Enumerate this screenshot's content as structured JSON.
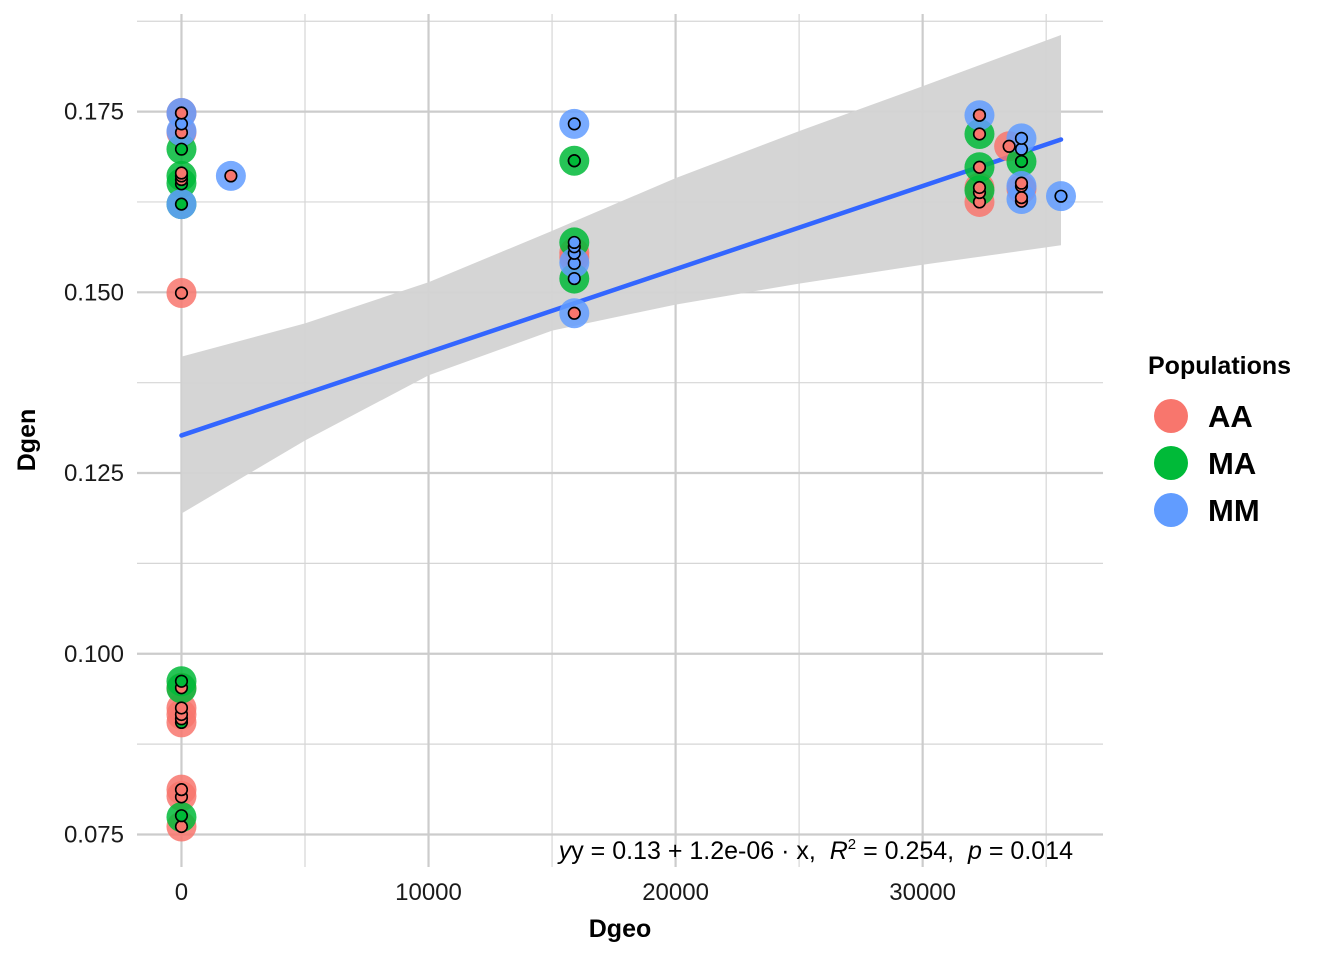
{
  "chart_data": {
    "type": "scatter",
    "title": "",
    "xlabel": "Dgeo",
    "ylabel": "Dgen",
    "xlim": [
      -1800,
      37300
    ],
    "ylim": [
      0.0705,
      0.1885
    ],
    "x_ticks": [
      0,
      10000,
      20000,
      30000
    ],
    "x_tick_labels": [
      "0",
      "10000",
      "20000",
      "30000"
    ],
    "y_ticks": [
      0.075,
      0.1,
      0.125,
      0.15,
      0.175
    ],
    "y_tick_labels": [
      "0.075",
      "0.100",
      "0.125",
      "0.150",
      "0.175"
    ],
    "grid": true,
    "legend": {
      "title": "Populations",
      "position": "right",
      "entries": [
        {
          "name": "AA",
          "color": "#F8766D"
        },
        {
          "name": "MA",
          "color": "#00BA38"
        },
        {
          "name": "MM",
          "color": "#619CFF"
        }
      ]
    },
    "series": [
      {
        "name": "AA",
        "color": "#F8766D",
        "x": [
          0,
          0,
          0,
          0,
          0,
          0,
          0,
          0,
          0,
          0,
          15900,
          15900,
          32300,
          32300,
          33500,
          34000
        ],
        "y": [
          0.0761,
          0.0803,
          0.0812,
          0.0905,
          0.0916,
          0.0925,
          0.0953,
          0.1499,
          0.1721,
          0.1748,
          0.1548,
          0.1555,
          0.1625,
          0.1645,
          0.1702,
          0.1643
        ]
      },
      {
        "name": "MA",
        "color": "#00BA38",
        "x": [
          0,
          0,
          0,
          0,
          0,
          0,
          0,
          15900,
          15900,
          15900,
          32300,
          32300,
          32300,
          34000
        ],
        "y": [
          0.0774,
          0.0952,
          0.0962,
          0.1622,
          0.1651,
          0.1661,
          0.1698,
          0.1519,
          0.1569,
          0.1682,
          0.1641,
          0.1673,
          0.1719,
          0.1681
        ]
      },
      {
        "name": "MM",
        "color": "#619CFF",
        "x": [
          0,
          0,
          0,
          2000,
          15900,
          15900,
          15900,
          32300,
          34000,
          34000,
          34000,
          35600
        ],
        "y": [
          0.1622,
          0.1723,
          0.1748,
          0.1661,
          0.1471,
          0.1541,
          0.1733,
          0.1745,
          0.1629,
          0.1647,
          0.1713,
          0.1633
        ]
      }
    ],
    "inner_points": {
      "x": [
        0,
        0,
        0,
        0,
        0,
        0,
        0,
        0,
        0,
        0,
        0,
        0,
        0,
        0,
        0,
        0,
        0,
        0,
        0,
        0,
        0,
        2000,
        15900,
        15900,
        15900,
        15900,
        15900,
        15900,
        15900,
        15900,
        15900,
        32300,
        32300,
        32300,
        32300,
        32300,
        32300,
        32300,
        33500,
        34000,
        34000,
        34000,
        34000,
        34000,
        34000,
        34000,
        35600
      ],
      "y": [
        0.0761,
        0.0776,
        0.0802,
        0.0812,
        0.0905,
        0.091,
        0.0916,
        0.0925,
        0.0953,
        0.0962,
        0.1499,
        0.1622,
        0.165,
        0.1656,
        0.1661,
        0.1665,
        0.1698,
        0.1721,
        0.1733,
        0.1748,
        0.1748,
        0.1661,
        0.1471,
        0.1519,
        0.154,
        0.1554,
        0.1563,
        0.1569,
        0.1682,
        0.1682,
        0.1733,
        0.1625,
        0.1638,
        0.1645,
        0.1673,
        0.1719,
        0.1745,
        0.1745,
        0.1702,
        0.1626,
        0.1631,
        0.1647,
        0.1651,
        0.1681,
        0.1698,
        0.1713,
        0.1633
      ],
      "fill": [
        "#F8766D",
        "#00BA38",
        "#F8766D",
        "#F8766D",
        "#00BA38",
        "#F8766D",
        "#F8766D",
        "#F8766D",
        "#F8766D",
        "#00BA38",
        "#F8766D",
        "#00BA38",
        "#00BA38",
        "#F8766D",
        "#F8766D",
        "#F8766D",
        "#00BA38",
        "#F8766D",
        "#619CFF",
        "#619CFF",
        "#F8766D",
        "#F8766D",
        "#F8766D",
        "#619CFF",
        "#619CFF",
        "#619CFF",
        "#619CFF",
        "#619CFF",
        "#00BA38",
        "#00BA38",
        "#619CFF",
        "#F8766D",
        "#F8766D",
        "#F8766D",
        "#F8766D",
        "#F8766D",
        "#F8766D",
        "#F8766D",
        "#F8766D",
        "#F8766D",
        "#F8766D",
        "#F8766D",
        "#F8766D",
        "#00BA38",
        "#619CFF",
        "#619CFF",
        "#619CFF"
      ]
    },
    "regression": {
      "intercept": 0.1302,
      "slope": 1.15e-06,
      "x_range": [
        0,
        35600
      ],
      "ci": {
        "x": [
          0,
          5000,
          10000,
          15000,
          20000,
          25000,
          30000,
          35600
        ],
        "lower": [
          0.1194,
          0.1295,
          0.1385,
          0.1447,
          0.1483,
          0.1512,
          0.1538,
          0.1565
        ],
        "upper": [
          0.1411,
          0.1457,
          0.1514,
          0.1585,
          0.1658,
          0.1723,
          0.1785,
          0.1856
        ]
      },
      "line_color": "#3366FF",
      "band_color": "#d3d3d3"
    },
    "annotation": {
      "equation_prefix": "y = 0.13 + 1.2e-06 · x,",
      "r2_symbol": "R",
      "r2_exponent": "2",
      "r2_value": " = 0.254,",
      "p_symbol": "p",
      "p_value": " = 0.014"
    }
  }
}
